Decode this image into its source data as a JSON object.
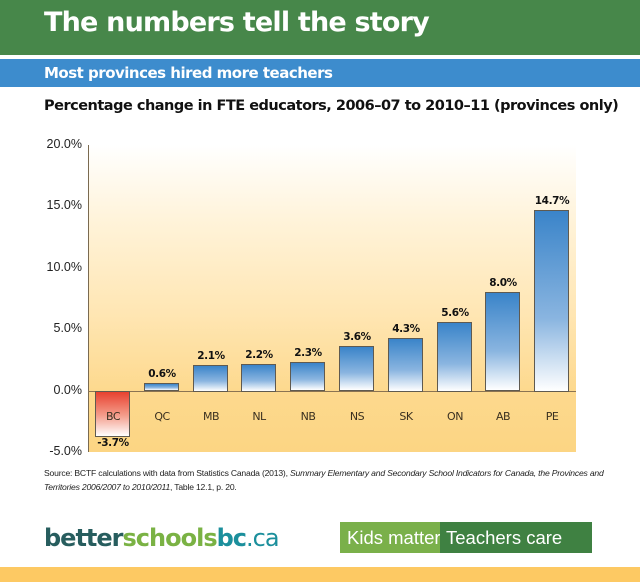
{
  "header": {
    "title": "The numbers tell the story",
    "color": "#47874a"
  },
  "subheader": {
    "title": "Most provinces hired more teachers",
    "color": "#3d8ccd"
  },
  "chart_data": {
    "type": "bar",
    "title": "Percentage change in FTE educators, 2006–07 to 2010–11 (provinces only)",
    "xlabel": "",
    "ylabel": "",
    "categories": [
      "BC",
      "QC",
      "MB",
      "NL",
      "NB",
      "NS",
      "SK",
      "ON",
      "AB",
      "PE"
    ],
    "values": [
      -3.7,
      0.6,
      2.1,
      2.2,
      2.3,
      3.6,
      4.3,
      5.6,
      8.0,
      14.7
    ],
    "value_labels": [
      "-3.7%",
      "0.6%",
      "2.1%",
      "2.2%",
      "2.3%",
      "3.6%",
      "4.3%",
      "5.6%",
      "8.0%",
      "14.7%"
    ],
    "ylim": [
      -5,
      20
    ],
    "yticks": [
      "20.0%",
      "15.0%",
      "10.0%",
      "5.0%",
      "0.0%",
      "-5.0%"
    ],
    "grid": false,
    "legend": null,
    "colors": {
      "positive": "#3a84c9",
      "negative": "#e8412f",
      "background": "#fdd98e"
    }
  },
  "source": {
    "prefix": "Source: BCTF calculations with data from Statistics Canada (2013), ",
    "italic": "Summary Elementary and Secondary School Indicators for Canada, the Provinces and Territories 2006/2007 to 2010/2011",
    "suffix": ", Table 12.1, p. 20."
  },
  "footer": {
    "logo": {
      "part1": "better",
      "part2": "schools",
      "part3": "bc",
      "part4": ".ca"
    },
    "badge": {
      "left": "Kids matter",
      "right": "Teachers care"
    }
  }
}
